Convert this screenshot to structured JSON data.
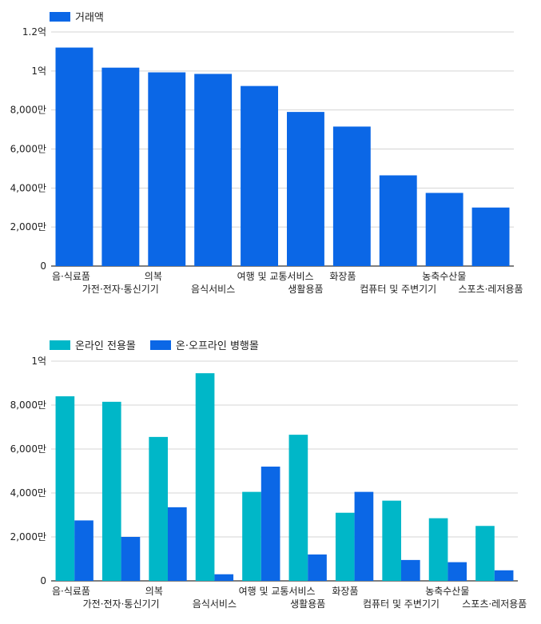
{
  "chart_data": [
    {
      "type": "bar",
      "categories": [
        "음·식료품",
        "가전·전자·통신기기",
        "의복",
        "음식서비스",
        "여행 및 교통서비스",
        "생활용품",
        "화장품",
        "컴퓨터 및 주변기기",
        "농축수산물",
        "스포츠·레저용품"
      ],
      "series": [
        {
          "name": "거래액",
          "color": "#0b67e6",
          "values": [
            112000000,
            101700000,
            99300000,
            98500000,
            92300000,
            79000000,
            71500000,
            46500000,
            37500000,
            30000000
          ]
        }
      ],
      "ylim": [
        0,
        120000000
      ],
      "yticks": [
        0,
        20000000,
        40000000,
        60000000,
        80000000,
        100000000,
        120000000
      ],
      "ytick_labels": [
        "0",
        "2,000만",
        "4,000만",
        "6,000만",
        "8,000만",
        "1억",
        "1.2억"
      ],
      "legend_position": "top-left",
      "grid": true
    },
    {
      "type": "bar",
      "categories": [
        "음·식료품",
        "가전·전자·통신기기",
        "의복",
        "음식서비스",
        "여행 및 교통서비스",
        "생활용품",
        "화장품",
        "컴퓨터 및 주변기기",
        "농축수산물",
        "스포츠·레저용품"
      ],
      "series": [
        {
          "name": "온라인 전용몰",
          "color": "#00b7c8",
          "values": [
            84000000,
            81500000,
            65500000,
            94500000,
            40500000,
            66500000,
            31000000,
            36500000,
            28500000,
            25000000
          ]
        },
        {
          "name": "온·오프라인 병행몰",
          "color": "#0b67e6",
          "values": [
            27500000,
            20000000,
            33500000,
            3000000,
            52000000,
            12000000,
            40500000,
            9500000,
            8500000,
            4800000
          ]
        }
      ],
      "ylim": [
        0,
        100000000
      ],
      "yticks": [
        0,
        20000000,
        40000000,
        60000000,
        80000000,
        100000000
      ],
      "ytick_labels": [
        "0",
        "2,000만",
        "4,000만",
        "6,000만",
        "8,000만",
        "1억"
      ],
      "legend_position": "top-left",
      "grid": true
    }
  ]
}
